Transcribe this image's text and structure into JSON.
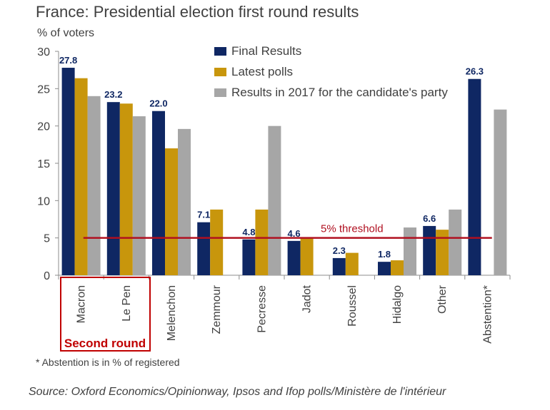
{
  "header": {
    "title": "France: Presidential election first round results",
    "subtitle": "% of voters"
  },
  "footer": {
    "footnote": "* Abstention is in % of registered",
    "source": "Source: Oxford Economics/Opinionway, Ipsos and Ifop polls/Ministère de l'intérieur"
  },
  "chart_data": {
    "type": "bar",
    "title": "France: Presidential election first round results",
    "ylabel": "% of voters",
    "ylim": [
      0,
      30
    ],
    "yticks": [
      0,
      5,
      10,
      15,
      20,
      25,
      30
    ],
    "grid": false,
    "legend_position": "top-right",
    "categories": [
      "Macron",
      "Le Pen",
      "Melenchon",
      "Zemmour",
      "Pecresse",
      "Jadot",
      "Roussel",
      "Hidalgo",
      "Other",
      "Abstention*"
    ],
    "series": [
      {
        "name": "Final Results",
        "color": "#0f2763",
        "values": [
          27.8,
          23.2,
          22.0,
          7.1,
          4.8,
          4.6,
          2.3,
          1.8,
          6.6,
          26.3
        ]
      },
      {
        "name": "Latest polls",
        "color": "#c8960c",
        "values": [
          26.4,
          23.0,
          17.0,
          8.8,
          8.8,
          5.0,
          3.0,
          2.0,
          6.1,
          null
        ]
      },
      {
        "name": "Results in 2017 for the candidate's party",
        "color": "#a6a6a6",
        "values": [
          24.0,
          21.3,
          19.6,
          null,
          20.0,
          null,
          null,
          6.4,
          8.8,
          22.2
        ]
      }
    ],
    "data_labels": [
      "27.8",
      "23.2",
      "22.0",
      "7.1",
      "4.8",
      "4.6",
      "2.3",
      "1.8",
      "6.6",
      "26.3"
    ],
    "threshold": {
      "value": 5,
      "label": "5% threshold",
      "color": "#b01020"
    },
    "annotation": {
      "label": "Second round",
      "color": "#c00000"
    }
  }
}
